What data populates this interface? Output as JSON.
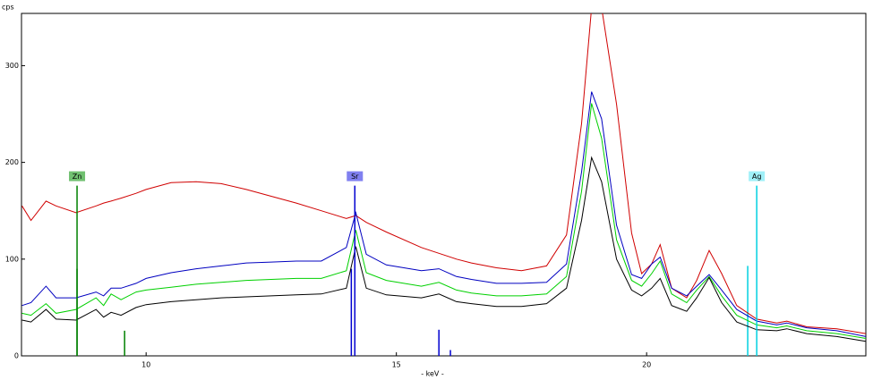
{
  "chart_data": {
    "type": "line",
    "y_label": "cps",
    "x_label": "- keV -",
    "xlim": [
      7.51,
      24.38
    ],
    "ylim": [
      0,
      354
    ],
    "xticks": [
      10,
      15,
      20
    ],
    "yticks": [
      0,
      100,
      200,
      300
    ],
    "x": [
      7.52,
      7.7,
      8.0,
      8.2,
      8.6,
      9.0,
      9.15,
      9.3,
      9.5,
      9.8,
      10,
      10.5,
      11,
      11.5,
      12,
      12.5,
      13,
      13.5,
      14.0,
      14.19,
      14.4,
      14.8,
      15.5,
      15.85,
      16.2,
      16.5,
      17,
      17.5,
      18,
      18.4,
      18.7,
      18.9,
      19.1,
      19.4,
      19.7,
      19.9,
      20.1,
      20.27,
      20.5,
      20.8,
      21.0,
      21.25,
      21.5,
      21.8,
      22.2,
      22.6,
      22.8,
      23.2,
      23.8,
      24.38
    ],
    "series": [
      {
        "color": "#d00000",
        "values": [
          155,
          140,
          160,
          155,
          148,
          155,
          158,
          160,
          163,
          168,
          172,
          179,
          180,
          178,
          172,
          165,
          158,
          150,
          142,
          145,
          138,
          128,
          112,
          106,
          100,
          96,
          91,
          88,
          93,
          125,
          240,
          360,
          360,
          260,
          127,
          85,
          95,
          115,
          70,
          60,
          78,
          109,
          85,
          52,
          38,
          34,
          36,
          30,
          28,
          23
        ]
      },
      {
        "color": "#0000c0",
        "values": [
          52,
          55,
          72,
          60,
          60,
          66,
          62,
          70,
          70,
          75,
          80,
          86,
          90,
          93,
          96,
          97,
          98,
          98,
          112,
          148,
          105,
          94,
          88,
          90,
          82,
          79,
          75,
          75,
          76,
          95,
          190,
          273,
          245,
          135,
          84,
          80,
          95,
          102,
          70,
          62,
          72,
          84,
          68,
          48,
          36,
          32,
          34,
          29,
          26,
          20
        ]
      },
      {
        "color": "#00d000",
        "values": [
          44,
          42,
          54,
          44,
          48,
          60,
          52,
          64,
          58,
          66,
          68,
          71,
          74,
          76,
          78,
          79,
          80,
          80,
          88,
          130,
          86,
          78,
          72,
          76,
          68,
          65,
          62,
          62,
          64,
          82,
          170,
          261,
          225,
          120,
          78,
          72,
          85,
          98,
          64,
          55,
          68,
          82,
          62,
          42,
          32,
          29,
          31,
          26,
          23,
          18
        ]
      },
      {
        "color": "#000000",
        "values": [
          37,
          35,
          48,
          38,
          37,
          48,
          40,
          45,
          42,
          50,
          53,
          56,
          58,
          60,
          61,
          62,
          63,
          64,
          70,
          113,
          70,
          63,
          60,
          64,
          56,
          54,
          51,
          51,
          54,
          70,
          140,
          205,
          180,
          100,
          68,
          62,
          70,
          80,
          52,
          46,
          60,
          81,
          55,
          35,
          27,
          26,
          28,
          23,
          20,
          15
        ]
      }
    ],
    "markers": [
      {
        "label": "Zn",
        "x": 8.62,
        "height": 176,
        "color": "#008000",
        "label_fill": "#70c070"
      },
      {
        "label": "Sr",
        "x": 14.17,
        "height": 176,
        "color": "#0000d0",
        "label_fill": "#8080f0"
      },
      {
        "label": "Ag",
        "x": 22.2,
        "height": 176,
        "color": "#00d0e0",
        "label_fill": "#a0f0f8"
      }
    ],
    "element_lines": [
      {
        "x": 8.62,
        "height": 90,
        "color": "#008000"
      },
      {
        "x": 9.57,
        "height": 26,
        "color": "#008000"
      },
      {
        "x": 14.1,
        "height": 90,
        "color": "#0000d0"
      },
      {
        "x": 15.85,
        "height": 27,
        "color": "#0000d0"
      },
      {
        "x": 16.08,
        "height": 6,
        "color": "#0000d0"
      },
      {
        "x": 22.02,
        "height": 93,
        "color": "#00d0e0"
      }
    ]
  }
}
